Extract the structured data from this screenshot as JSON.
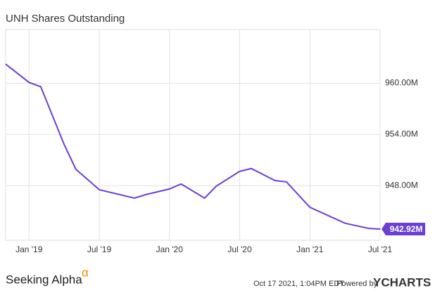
{
  "chart_data": {
    "type": "line",
    "title": "UNH Shares Outstanding",
    "x": [
      "2018-11",
      "2019-01",
      "2019-02",
      "2019-04",
      "2019-05",
      "2019-07",
      "2019-10",
      "2019-11",
      "2020-01",
      "2020-02",
      "2020-04",
      "2020-05",
      "2020-07",
      "2020-08",
      "2020-10",
      "2020-11",
      "2021-01",
      "2021-04",
      "2021-06",
      "2021-07"
    ],
    "series": [
      {
        "name": "UNH Shares Outstanding",
        "color": "#6b3fd6",
        "values": [
          962.25,
          960.1,
          959.6,
          952.83,
          949.93,
          947.53,
          946.54,
          946.96,
          947.62,
          948.2,
          946.54,
          947.95,
          949.68,
          950.01,
          948.61,
          948.44,
          945.47,
          943.6,
          943.0,
          942.92
        ],
        "value_labels": [
          null,
          null,
          null,
          null,
          null,
          null,
          null,
          null,
          null,
          null,
          null,
          null,
          null,
          null,
          null,
          null,
          null,
          null,
          null,
          "942.92M"
        ]
      }
    ],
    "xlim": [
      "2018-11",
      "2021-07"
    ],
    "xticks": [
      {
        "value": "2019-01",
        "label": "Jan '19"
      },
      {
        "value": "2019-07",
        "label": "Jul '19"
      },
      {
        "value": "2020-01",
        "label": "Jan '20"
      },
      {
        "value": "2020-07",
        "label": "Jul '20"
      },
      {
        "value": "2021-01",
        "label": "Jan '21"
      },
      {
        "value": "2021-07",
        "label": "Jul '21"
      }
    ],
    "ylim": [
      941.6,
      966.3
    ],
    "yticks": [
      {
        "value": 948,
        "label": "948.00M"
      },
      {
        "value": 954,
        "label": "954.00M"
      },
      {
        "value": 960,
        "label": "960.00M"
      }
    ],
    "grid": true
  },
  "footer": {
    "brand": "Seeking Alpha",
    "brand_symbol": "α",
    "timestamp": "Oct 17 2021, 1:04PM EDT.",
    "powered_by": "Powered by",
    "provider": "YCHARTS"
  }
}
